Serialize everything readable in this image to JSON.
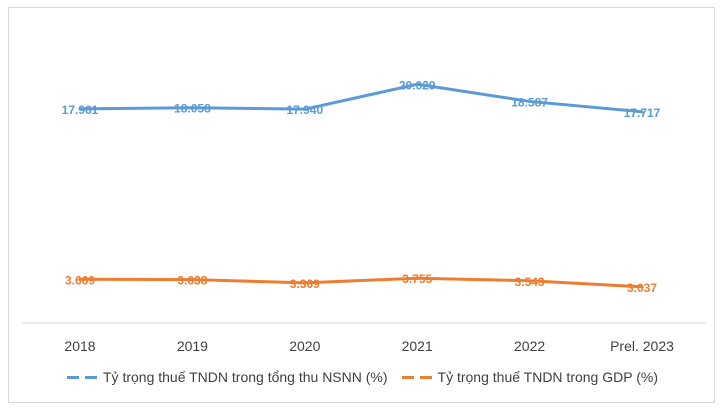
{
  "chart_data": {
    "type": "line",
    "title": "",
    "xlabel": "",
    "ylabel": "",
    "categories": [
      "2018",
      "2019",
      "2020",
      "2021",
      "2022",
      "Prel. 2023"
    ],
    "series": [
      {
        "name": "Tỷ trọng thuế TNDN trong tổng thu NSNN (%)",
        "color": "#5b9bd5",
        "values": [
          17.961,
          18.058,
          17.94,
          20.029,
          18.587,
          17.717
        ],
        "labels": [
          "17.961",
          "18.058",
          "17.940",
          "20.029",
          "18.587",
          "17.717"
        ]
      },
      {
        "name": "Tỷ trọng thuế TNDN trong GDP (%)",
        "color": "#ed7d31",
        "values": [
          3.669,
          3.638,
          3.369,
          3.755,
          3.543,
          3.037
        ],
        "labels": [
          "3.669",
          "3.638",
          "3.369",
          "3.755",
          "3.543",
          "3.037"
        ]
      }
    ],
    "ylim": [
      0,
      25
    ],
    "grid": false,
    "legend_position": "bottom"
  }
}
